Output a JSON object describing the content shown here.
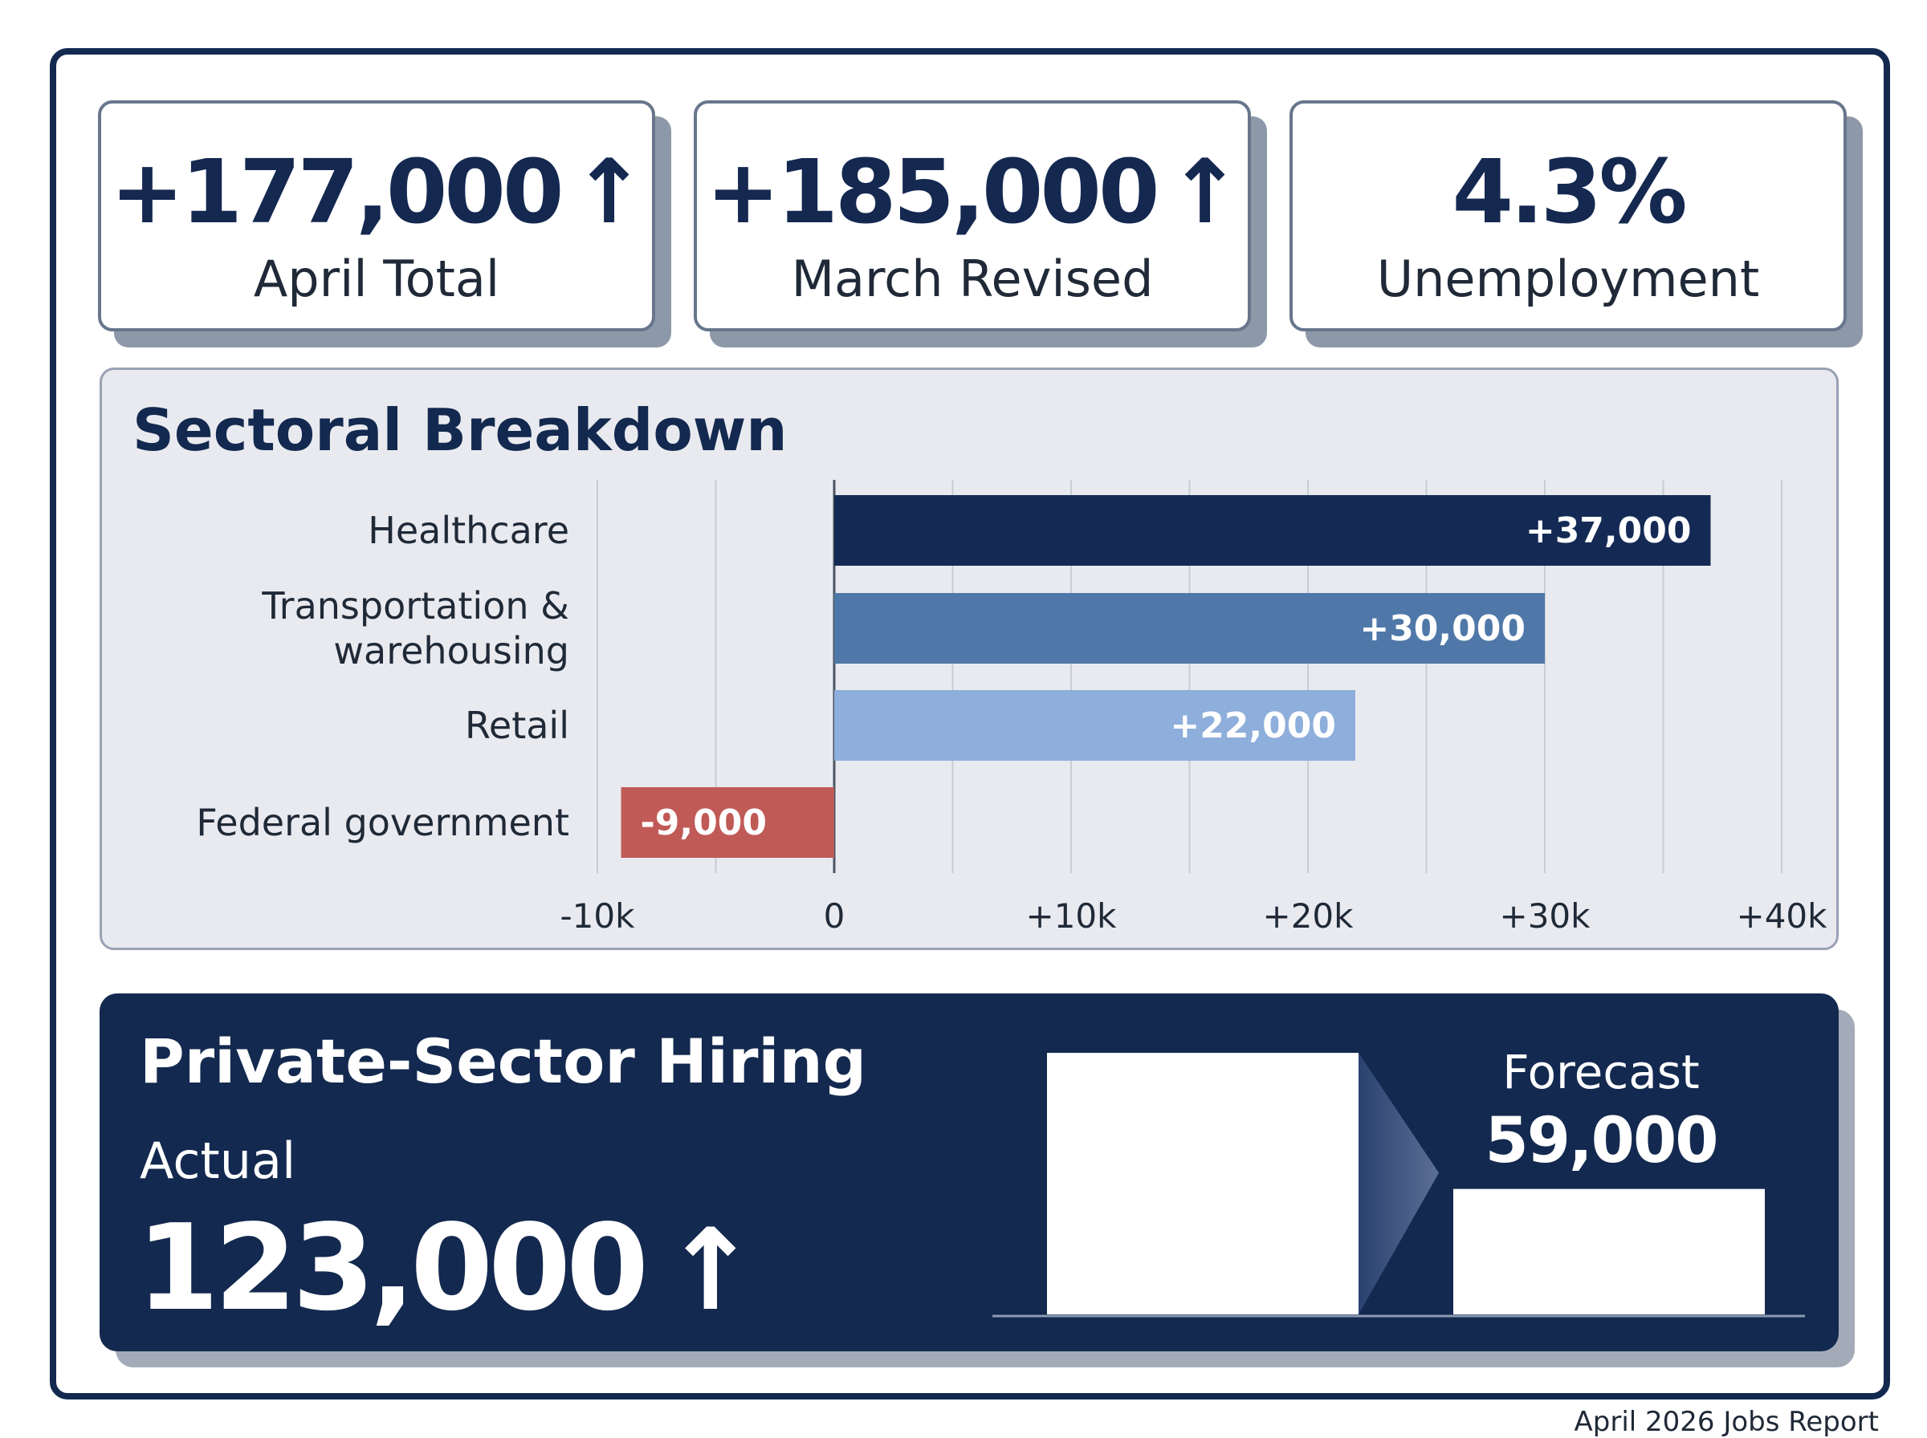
{
  "stats": [
    {
      "value": "+177,000",
      "arrow": "↑",
      "label": "April Total"
    },
    {
      "value": "+185,000",
      "arrow": "↑",
      "label": "March Revised"
    },
    {
      "value": "4.3%",
      "arrow": "",
      "label": "Unemployment"
    }
  ],
  "sector": {
    "title": "Sectoral Breakdown"
  },
  "hiring": {
    "title": "Private-Sector Hiring",
    "actual_label": "Actual",
    "actual_value": "123,000",
    "actual_arrow": "↑",
    "forecast_label": "Forecast",
    "forecast_value": "59,000"
  },
  "footer": "April 2026 Jobs Report",
  "chart_data": [
    {
      "type": "bar",
      "orientation": "horizontal",
      "title": "Sectoral Breakdown",
      "categories": [
        "Healthcare",
        "Transportation &\nwarehousing",
        "Retail",
        "Federal government"
      ],
      "values": [
        37000,
        30000,
        22000,
        -9000
      ],
      "data_labels": [
        "+37,000",
        "+30,000",
        "+22,000",
        "-9,000"
      ],
      "colors": [
        "#142a55",
        "#4f78a9",
        "#8eaedb",
        "#c05a57"
      ],
      "xlim": [
        -10000,
        40000
      ],
      "xticks": [
        -10000,
        0,
        10000,
        20000,
        30000,
        40000
      ],
      "xtick_labels": [
        "-10k",
        "0",
        "+10k",
        "+20k",
        "+30k",
        "+40k"
      ],
      "grid": true
    },
    {
      "type": "bar",
      "categories": [
        "Actual",
        "Forecast"
      ],
      "values": [
        123000,
        59000
      ],
      "colors": [
        "#ffffff",
        "#ffffff"
      ]
    }
  ]
}
